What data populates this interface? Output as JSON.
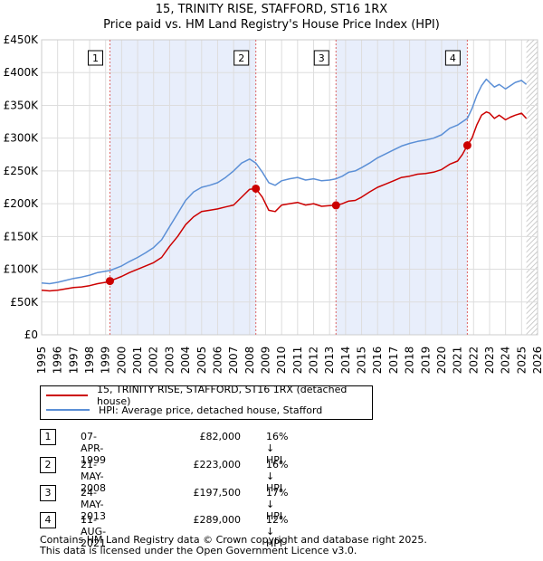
{
  "chart_data": {
    "type": "line",
    "title": "15, TRINITY RISE, STAFFORD, ST16 1RX",
    "subtitle": "Price paid vs. HM Land Registry's House Price Index (HPI)",
    "xlabel": "",
    "ylabel": "",
    "xlim": [
      1995,
      2026
    ],
    "ylim": [
      0,
      450000
    ],
    "y_ticks": [
      0,
      50000,
      100000,
      150000,
      200000,
      250000,
      300000,
      350000,
      400000,
      450000
    ],
    "y_tick_labels": [
      "£0",
      "£50K",
      "£100K",
      "£150K",
      "£200K",
      "£250K",
      "£300K",
      "£350K",
      "£400K",
      "£450K"
    ],
    "x_ticks": [
      1995,
      1996,
      1997,
      1998,
      1999,
      2000,
      2001,
      2002,
      2003,
      2004,
      2005,
      2006,
      2007,
      2008,
      2009,
      2010,
      2011,
      2012,
      2013,
      2014,
      2015,
      2016,
      2017,
      2018,
      2019,
      2020,
      2021,
      2022,
      2023,
      2024,
      2025,
      2026
    ],
    "x_tick_labels": [
      "1995",
      "1996",
      "1997",
      "1998",
      "1999",
      "2000",
      "2001",
      "2002",
      "2003",
      "2004",
      "2005",
      "2006",
      "2007",
      "2008",
      "2009",
      "2010",
      "2011",
      "2012",
      "2013",
      "2014",
      "2015",
      "2016",
      "2017",
      "2018",
      "2019",
      "2020",
      "2021",
      "2022",
      "2023",
      "2024",
      "2025",
      "2026"
    ],
    "shaded_ranges": [
      [
        1999.27,
        2008.39
      ],
      [
        2013.4,
        2021.61
      ]
    ],
    "hatched_from": 2025.3,
    "series": [
      {
        "name": "15, TRINITY RISE, STAFFORD, ST16 1RX (detached house)",
        "color": "#cc0000",
        "x": [
          1995.0,
          1995.5,
          1996.0,
          1996.5,
          1997.0,
          1997.5,
          1998.0,
          1998.5,
          1999.0,
          1999.27,
          2000.0,
          2000.5,
          2001.0,
          2001.5,
          2002.0,
          2002.5,
          2003.0,
          2003.5,
          2004.0,
          2004.5,
          2005.0,
          2005.5,
          2006.0,
          2006.5,
          2007.0,
          2007.5,
          2008.0,
          2008.39,
          2008.8,
          2009.2,
          2009.6,
          2010.0,
          2010.5,
          2011.0,
          2011.5,
          2012.0,
          2012.5,
          2013.0,
          2013.4,
          2013.8,
          2014.2,
          2014.6,
          2015.0,
          2015.5,
          2016.0,
          2016.5,
          2017.0,
          2017.5,
          2018.0,
          2018.5,
          2019.0,
          2019.5,
          2020.0,
          2020.5,
          2021.0,
          2021.3,
          2021.61,
          2021.9,
          2022.2,
          2022.5,
          2022.8,
          2023.0,
          2023.3,
          2023.6,
          2024.0,
          2024.3,
          2024.6,
          2025.0,
          2025.3
        ],
        "y": [
          68000,
          67000,
          68000,
          70000,
          72000,
          73000,
          75000,
          78000,
          80000,
          82000,
          89000,
          95000,
          100000,
          105000,
          110000,
          118000,
          135000,
          150000,
          168000,
          180000,
          188000,
          190000,
          192000,
          195000,
          198000,
          210000,
          222000,
          223000,
          210000,
          190000,
          188000,
          198000,
          200000,
          202000,
          198000,
          200000,
          196000,
          197000,
          197500,
          200000,
          204000,
          205000,
          210000,
          218000,
          225000,
          230000,
          235000,
          240000,
          242000,
          245000,
          246000,
          248000,
          252000,
          260000,
          265000,
          275000,
          289000,
          300000,
          320000,
          335000,
          340000,
          338000,
          330000,
          335000,
          328000,
          332000,
          335000,
          338000,
          330000
        ]
      },
      {
        "name": "HPI: Average price, detached house, Stafford",
        "color": "#5b8fd6",
        "x": [
          1995.0,
          1995.5,
          1996.0,
          1996.5,
          1997.0,
          1997.5,
          1998.0,
          1998.5,
          1999.0,
          1999.27,
          2000.0,
          2000.5,
          2001.0,
          2001.5,
          2002.0,
          2002.5,
          2003.0,
          2003.5,
          2004.0,
          2004.5,
          2005.0,
          2005.5,
          2006.0,
          2006.5,
          2007.0,
          2007.5,
          2008.0,
          2008.39,
          2008.8,
          2009.2,
          2009.6,
          2010.0,
          2010.5,
          2011.0,
          2011.5,
          2012.0,
          2012.5,
          2013.0,
          2013.4,
          2013.8,
          2014.2,
          2014.6,
          2015.0,
          2015.5,
          2016.0,
          2016.5,
          2017.0,
          2017.5,
          2018.0,
          2018.5,
          2019.0,
          2019.5,
          2020.0,
          2020.5,
          2021.0,
          2021.3,
          2021.61,
          2021.9,
          2022.2,
          2022.5,
          2022.8,
          2023.0,
          2023.3,
          2023.6,
          2024.0,
          2024.3,
          2024.6,
          2025.0,
          2025.3
        ],
        "y": [
          79000,
          78000,
          80000,
          83000,
          86000,
          88000,
          91000,
          95000,
          97000,
          98000,
          105000,
          112000,
          118000,
          125000,
          133000,
          145000,
          165000,
          185000,
          205000,
          218000,
          225000,
          228000,
          232000,
          240000,
          250000,
          262000,
          268000,
          262000,
          248000,
          232000,
          228000,
          235000,
          238000,
          240000,
          236000,
          238000,
          235000,
          236000,
          238000,
          242000,
          248000,
          250000,
          255000,
          262000,
          270000,
          276000,
          282000,
          288000,
          292000,
          295000,
          297000,
          300000,
          305000,
          315000,
          320000,
          325000,
          330000,
          345000,
          365000,
          380000,
          390000,
          385000,
          378000,
          382000,
          375000,
          380000,
          385000,
          388000,
          382000
        ]
      }
    ],
    "sales": [
      {
        "num": "1",
        "x": 1999.27,
        "y": 82000,
        "date": "07-APR-1999",
        "price": "£82,000",
        "hpi": "16% ↓ HPI"
      },
      {
        "num": "2",
        "x": 2008.39,
        "y": 223000,
        "date": "21-MAY-2008",
        "price": "£223,000",
        "hpi": "16% ↓ HPI"
      },
      {
        "num": "3",
        "x": 2013.4,
        "y": 197500,
        "date": "24-MAY-2013",
        "price": "£197,500",
        "hpi": "17% ↓ HPI"
      },
      {
        "num": "4",
        "x": 2021.61,
        "y": 289000,
        "date": "11-AUG-2021",
        "price": "£289,000",
        "hpi": "12% ↓ HPI"
      }
    ]
  },
  "legend": {
    "property_label": "15, TRINITY RISE, STAFFORD, ST16 1RX (detached house)",
    "hpi_label": "HPI: Average price, detached house, Stafford"
  },
  "footer": {
    "line1": "Contains HM Land Registry data © Crown copyright and database right 2025.",
    "line2": "This data is licensed under the Open Government Licence v3.0."
  }
}
